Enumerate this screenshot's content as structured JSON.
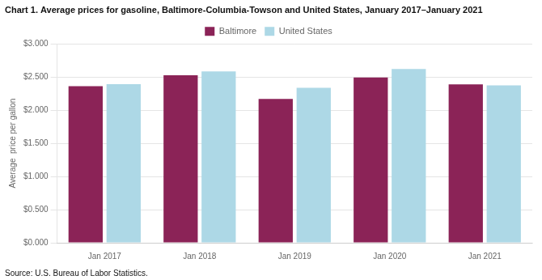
{
  "chart_data": {
    "type": "bar",
    "title": "Chart 1. Average prices for gasoline, Baltimore-Columbia-Towson and United States, January 2017–January 2021",
    "y_label": "Average  price per gallon",
    "annotations": [
      "Source: U.S. Bureau of Labor Statistics."
    ],
    "categories": [
      "Jan 2017",
      "Jan 2018",
      "Jan 2019",
      "Jan 2020",
      "Jan 2021"
    ],
    "series": [
      {
        "name": "Baltimore",
        "color": "#8B2357",
        "values": [
          2.362,
          2.527,
          2.17,
          2.493,
          2.389
        ]
      },
      {
        "name": "United States",
        "color": "#ADD8E6",
        "values": [
          2.393,
          2.583,
          2.338,
          2.62,
          2.374
        ]
      }
    ],
    "ylim": [
      0,
      3.0
    ],
    "yticks": [
      {
        "value": 0.0,
        "label": "$0.000"
      },
      {
        "value": 0.5,
        "label": "$0.500"
      },
      {
        "value": 1.0,
        "label": "$1.000"
      },
      {
        "value": 1.5,
        "label": "$1.500"
      },
      {
        "value": 2.0,
        "label": "$2.000"
      },
      {
        "value": 2.5,
        "label": "$2.500"
      },
      {
        "value": 3.0,
        "label": "$3.000"
      }
    ],
    "grid": true,
    "legend": "top"
  }
}
